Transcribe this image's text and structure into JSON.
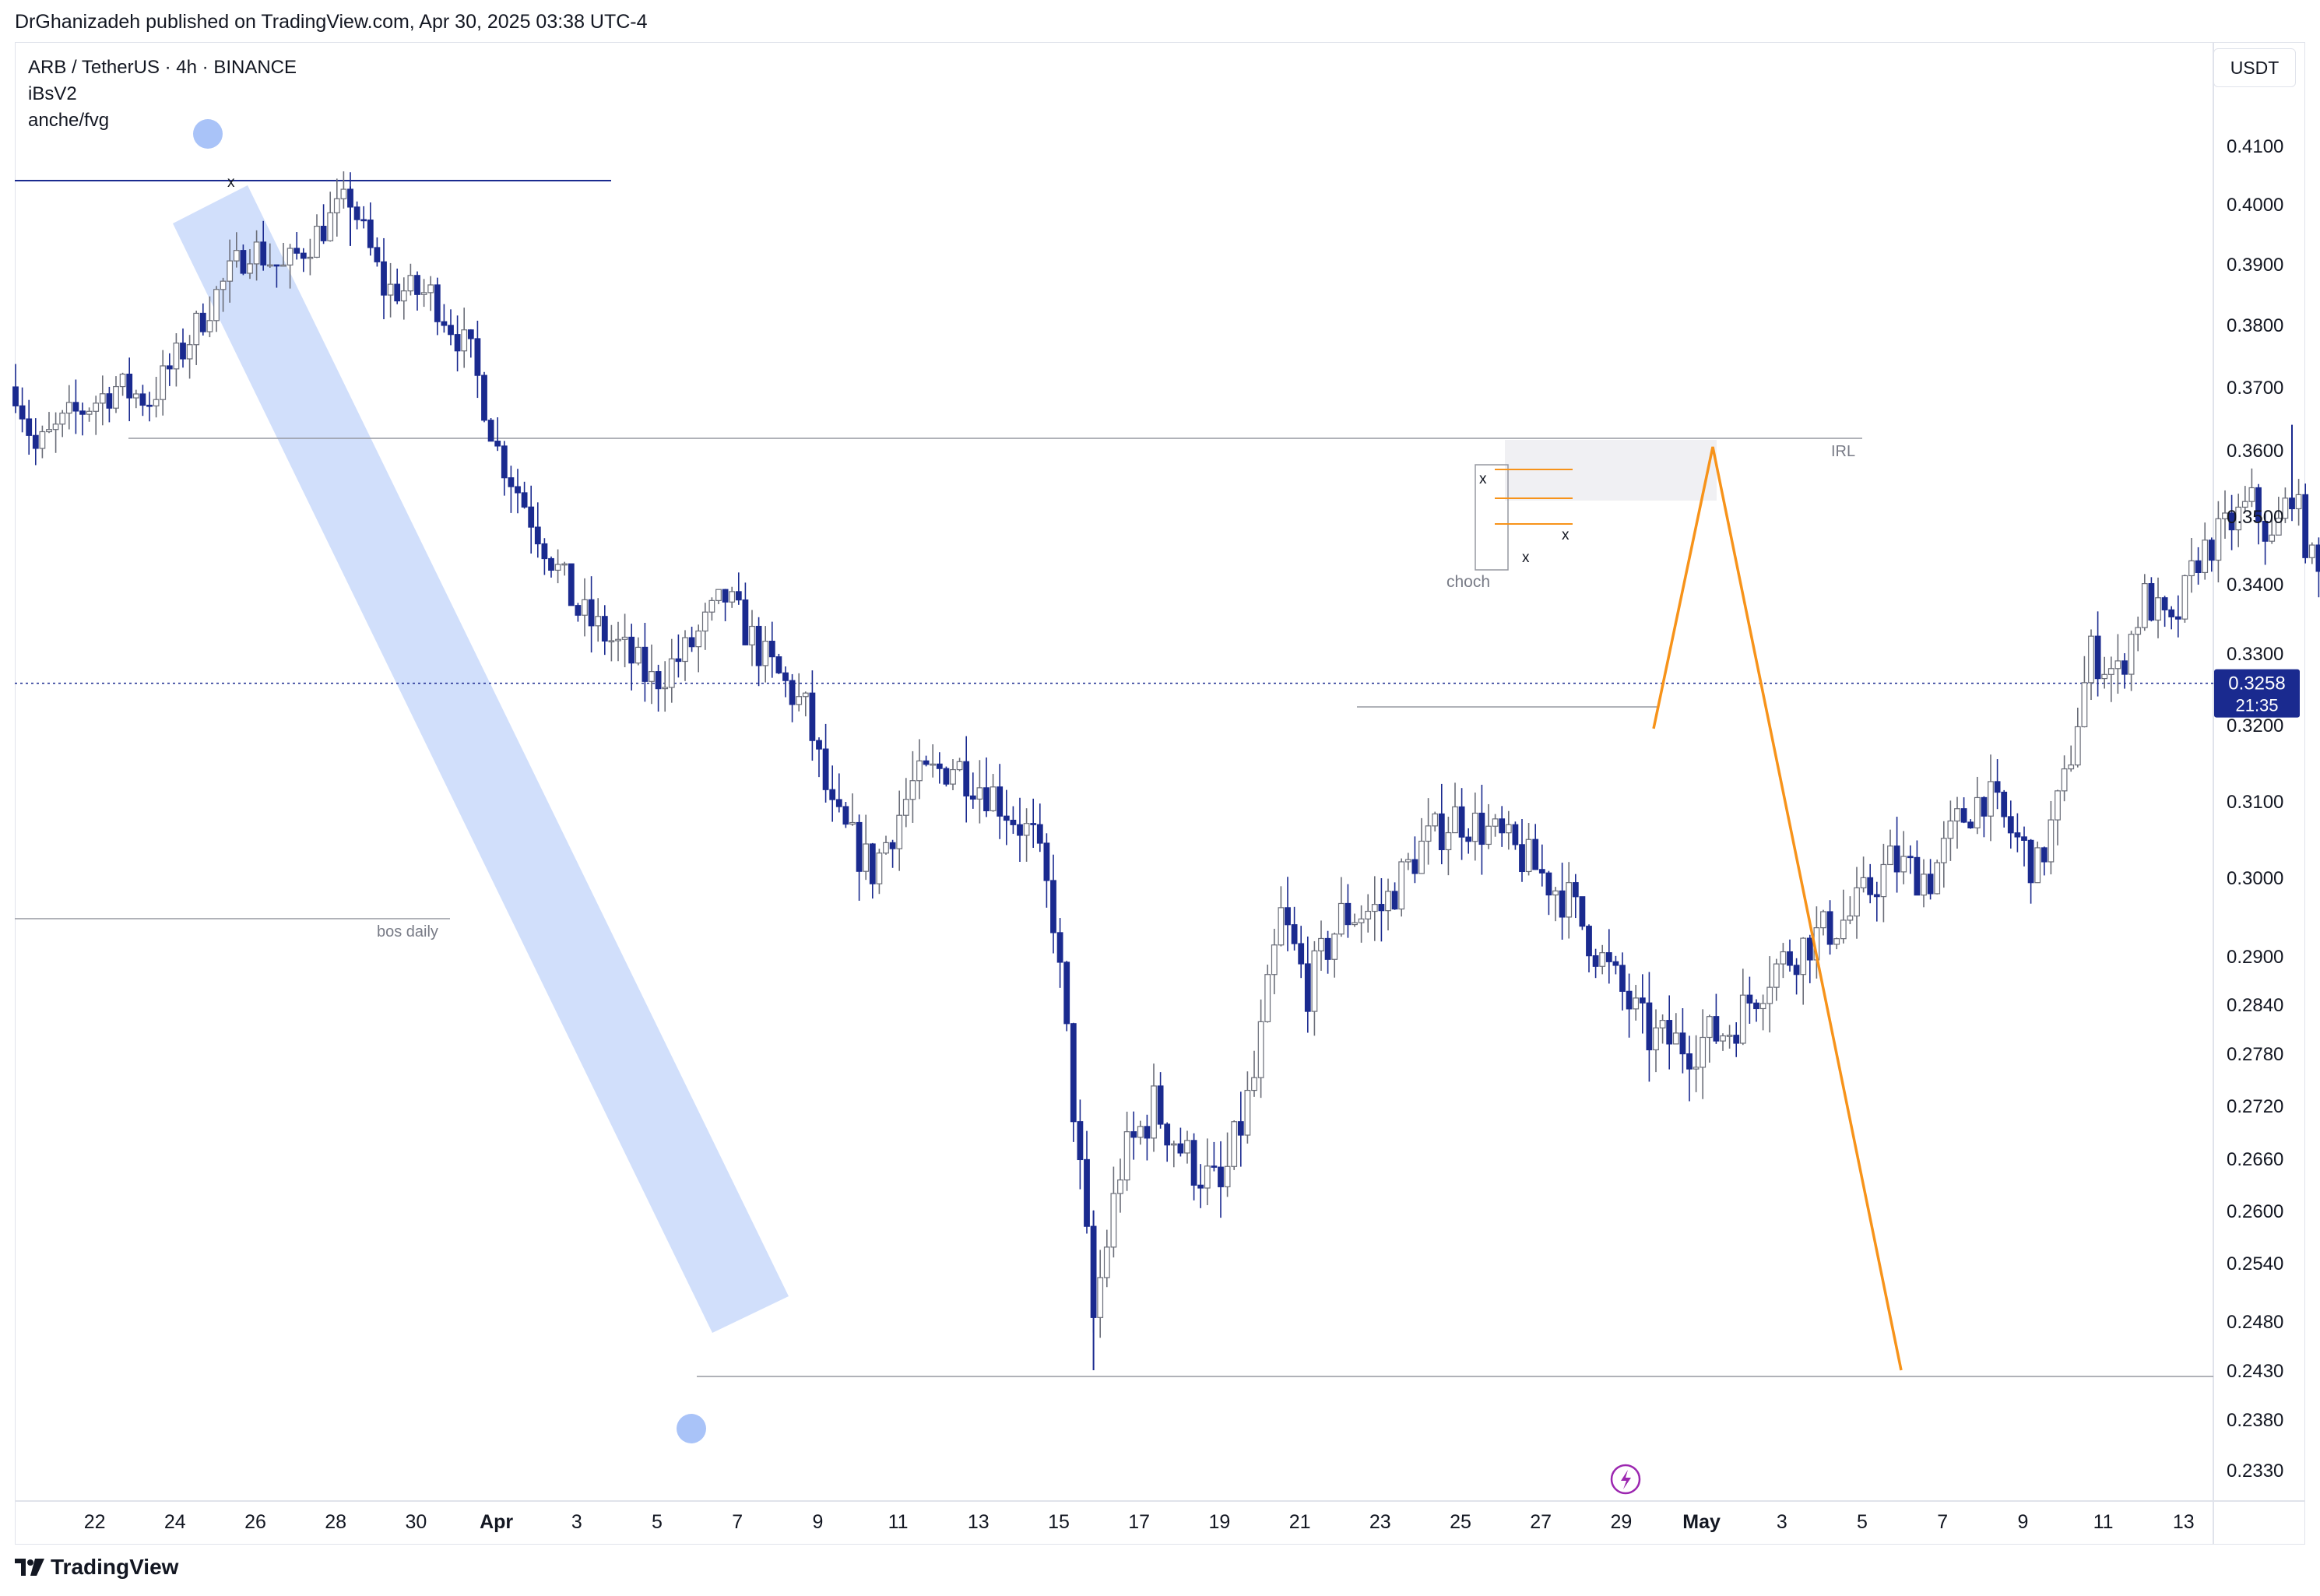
{
  "header": {
    "published_by": "DrGhanizadeh published on TradingView.com, Apr 30, 2025 03:38 UTC-4"
  },
  "legend": {
    "symbol_line": "ARB / TetherUS · 4h · BINANCE",
    "indicator1": "iBsV2",
    "indicator2": "anche/fvg"
  },
  "price_axis": {
    "currency": "USDT",
    "current_price": "0.3258",
    "countdown": "21:35"
  },
  "footer": {
    "brand": "TradingView"
  },
  "colors": {
    "bull": "#ffffff",
    "bear": "#1a2a8f",
    "accent_orange": "#f7931a",
    "channel_blue": "#9ab8f7",
    "current_line": "#1a2a8f"
  },
  "icons": {
    "footer_logo": "tradingview-logo-icon",
    "event_marker": "lightning-icon"
  },
  "chart_data": {
    "type": "candlestick",
    "title": "ARB / TetherUS · 4h · BINANCE",
    "y_ticks": [
      "0.2330",
      "0.2380",
      "0.2430",
      "0.2480",
      "0.2540",
      "0.2600",
      "0.2660",
      "0.2720",
      "0.2780",
      "0.2840",
      "0.2900",
      "0.3000",
      "0.3100",
      "0.3200",
      "0.3300",
      "0.3400",
      "0.3500",
      "0.3600",
      "0.3700",
      "0.3800",
      "0.3900",
      "0.4000",
      "0.4100"
    ],
    "x_ticks": [
      "22",
      "24",
      "26",
      "28",
      "30",
      "Apr",
      "3",
      "5",
      "7",
      "9",
      "11",
      "13",
      "15",
      "17",
      "19",
      "21",
      "23",
      "25",
      "27",
      "29",
      "May",
      "3",
      "5",
      "7",
      "9",
      "11",
      "13"
    ],
    "annotations": {
      "irl": "IRL",
      "bos_daily": "bos daily",
      "choch": "choch",
      "sweep_marks": [
        "x",
        "x",
        "x",
        "x"
      ]
    },
    "levels": [
      {
        "name": "top",
        "price": 0.403
      },
      {
        "name": "IRL",
        "price": 0.3625
      },
      {
        "name": "bos daily",
        "price": 0.2955
      },
      {
        "name": "low",
        "price": 0.243
      },
      {
        "name": "current",
        "price": 0.3258
      }
    ],
    "projection": [
      {
        "date": "Apr 30",
        "price": 0.3195
      },
      {
        "date": "May 2",
        "price": 0.3605
      },
      {
        "date": "May 7",
        "price": 0.243
      }
    ],
    "price_path": [
      {
        "i": 0,
        "p": 0.37
      },
      {
        "i": 3,
        "p": 0.36
      },
      {
        "i": 8,
        "p": 0.365
      },
      {
        "i": 15,
        "p": 0.37
      },
      {
        "i": 20,
        "p": 0.368
      },
      {
        "i": 25,
        "p": 0.376
      },
      {
        "i": 30,
        "p": 0.385
      },
      {
        "i": 35,
        "p": 0.393
      },
      {
        "i": 40,
        "p": 0.389
      },
      {
        "i": 45,
        "p": 0.395
      },
      {
        "i": 50,
        "p": 0.401
      },
      {
        "i": 55,
        "p": 0.386
      },
      {
        "i": 62,
        "p": 0.385
      },
      {
        "i": 68,
        "p": 0.375
      },
      {
        "i": 72,
        "p": 0.36
      },
      {
        "i": 78,
        "p": 0.348
      },
      {
        "i": 84,
        "p": 0.336
      },
      {
        "i": 90,
        "p": 0.331
      },
      {
        "i": 95,
        "p": 0.326
      },
      {
        "i": 100,
        "p": 0.33
      },
      {
        "i": 106,
        "p": 0.338
      },
      {
        "i": 112,
        "p": 0.329
      },
      {
        "i": 118,
        "p": 0.322
      },
      {
        "i": 122,
        "p": 0.308
      },
      {
        "i": 128,
        "p": 0.301
      },
      {
        "i": 134,
        "p": 0.312
      },
      {
        "i": 140,
        "p": 0.315
      },
      {
        "i": 146,
        "p": 0.311
      },
      {
        "i": 152,
        "p": 0.305
      },
      {
        "i": 155,
        "p": 0.295
      },
      {
        "i": 158,
        "p": 0.272
      },
      {
        "i": 161,
        "p": 0.248
      },
      {
        "i": 165,
        "p": 0.265
      },
      {
        "i": 170,
        "p": 0.272
      },
      {
        "i": 175,
        "p": 0.266
      },
      {
        "i": 180,
        "p": 0.262
      },
      {
        "i": 185,
        "p": 0.275
      },
      {
        "i": 189,
        "p": 0.295
      },
      {
        "i": 193,
        "p": 0.286
      },
      {
        "i": 198,
        "p": 0.295
      },
      {
        "i": 204,
        "p": 0.296
      },
      {
        "i": 210,
        "p": 0.304
      },
      {
        "i": 215,
        "p": 0.308
      },
      {
        "i": 220,
        "p": 0.306
      },
      {
        "i": 226,
        "p": 0.302
      },
      {
        "i": 232,
        "p": 0.297
      },
      {
        "i": 238,
        "p": 0.288
      },
      {
        "i": 244,
        "p": 0.28
      },
      {
        "i": 250,
        "p": 0.279
      },
      {
        "i": 256,
        "p": 0.281
      },
      {
        "i": 262,
        "p": 0.288
      },
      {
        "i": 268,
        "p": 0.292
      },
      {
        "i": 274,
        "p": 0.295
      },
      {
        "i": 280,
        "p": 0.302
      },
      {
        "i": 286,
        "p": 0.3
      },
      {
        "i": 290,
        "p": 0.307
      },
      {
        "i": 294,
        "p": 0.311
      },
      {
        "i": 298,
        "p": 0.306
      },
      {
        "i": 302,
        "p": 0.301
      },
      {
        "i": 306,
        "p": 0.312
      },
      {
        "i": 310,
        "p": 0.33
      },
      {
        "i": 314,
        "p": 0.327
      },
      {
        "i": 318,
        "p": 0.338
      },
      {
        "i": 322,
        "p": 0.333
      },
      {
        "i": 326,
        "p": 0.344
      },
      {
        "i": 330,
        "p": 0.348
      },
      {
        "i": 334,
        "p": 0.352
      },
      {
        "i": 337,
        "p": 0.346
      },
      {
        "i": 340,
        "p": 0.354
      },
      {
        "i": 343,
        "p": 0.343
      },
      {
        "i": 346,
        "p": 0.337
      },
      {
        "i": 350,
        "p": 0.342
      },
      {
        "i": 354,
        "p": 0.335
      },
      {
        "i": 357,
        "p": 0.34
      },
      {
        "i": 360,
        "p": 0.338
      },
      {
        "i": 363,
        "p": 0.33
      },
      {
        "i": 366,
        "p": 0.3258
      }
    ]
  }
}
